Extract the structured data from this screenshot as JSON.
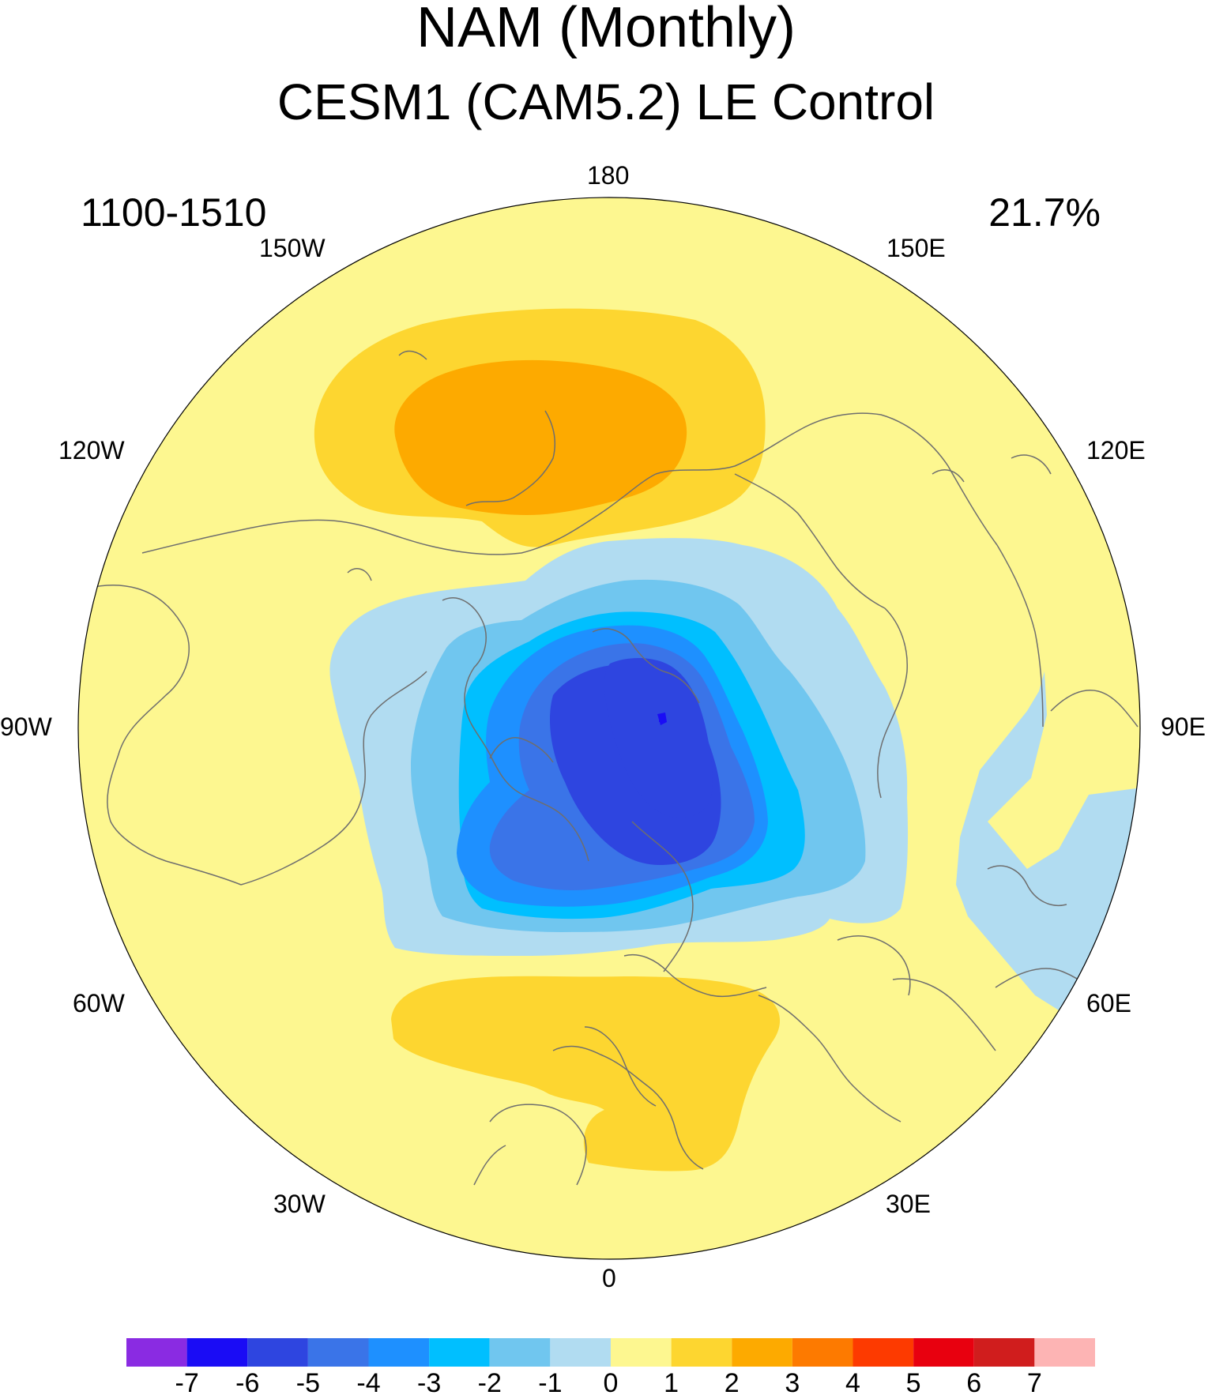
{
  "figure": {
    "title": "NAM (Monthly)",
    "subtitle": "CESM1 (CAM5.2) LE Control",
    "left_label": "1100-1510",
    "right_label": "21.7%"
  },
  "longitude_labels": {
    "lon_180": "180",
    "lon_150w": "150W",
    "lon_150e": "150E",
    "lon_120w": "120W",
    "lon_120e": "120E",
    "lon_90w": "90W",
    "lon_90e": "90E",
    "lon_60w": "60W",
    "lon_60e": "60E",
    "lon_30w": "30W",
    "lon_30e": "30E",
    "lon_0": "0"
  },
  "colorbar": {
    "labels": [
      "-7",
      "-6",
      "-5",
      "-4",
      "-3",
      "-2",
      "-1",
      "0",
      "1",
      "2",
      "3",
      "4",
      "5",
      "6",
      "7"
    ],
    "colors": [
      "#8a2be2",
      "#1a0cf5",
      "#2e45e0",
      "#3a74e8",
      "#1e90ff",
      "#00bfff",
      "#70c6ef",
      "#b1dcf1",
      "#fdf790",
      "#fdd630",
      "#fdaa00",
      "#fd7a00",
      "#fd3a00",
      "#e8000f",
      "#d01d1d",
      "#fdb4b4"
    ]
  },
  "field_colors": {
    "background": "#fdf790",
    "pos1": "#fdd630",
    "pos2": "#fdaa00",
    "neg1": "#b1dcf1",
    "neg2": "#70c6ef",
    "neg3": "#00bfff",
    "neg4": "#1e90ff",
    "neg5": "#3a74e8",
    "neg6": "#2e45e0",
    "neg7": "#1a0cf5",
    "coast": "#6e6e6e"
  }
}
